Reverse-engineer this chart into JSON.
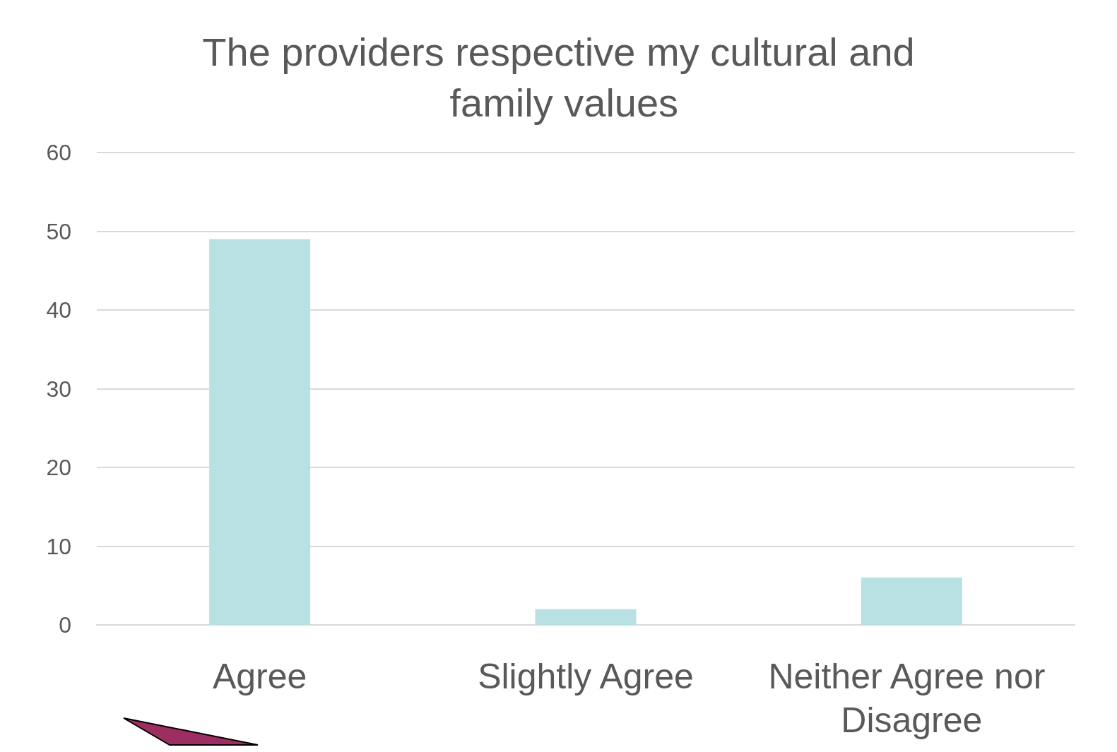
{
  "chart_data": {
    "type": "bar",
    "title": "The providers respective my cultural and family values",
    "categories": [
      "Agree",
      "Slightly Agree",
      "Neither Agree nor Disagree"
    ],
    "values": [
      49,
      2,
      6
    ],
    "color": "#b9e0e3",
    "ylim": [
      0,
      60
    ],
    "yticks": [
      0,
      10,
      20,
      30,
      40,
      50,
      60
    ],
    "grid": "y"
  }
}
